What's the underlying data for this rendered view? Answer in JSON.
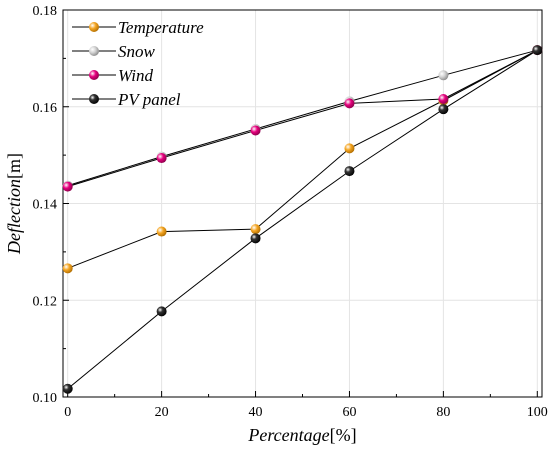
{
  "chart_data": {
    "type": "line",
    "xlabel_main": "Percentage",
    "xlabel_unit": "[%]",
    "ylabel_main": "Deflection",
    "ylabel_unit": "[m]",
    "xlim": [
      -1,
      101
    ],
    "ylim": [
      0.1,
      0.18
    ],
    "xticks": [
      0,
      20,
      40,
      60,
      80,
      100
    ],
    "yticks": [
      0.1,
      0.12,
      0.14,
      0.16,
      0.18
    ],
    "grid": true,
    "legend_position": "top-left",
    "x": [
      0,
      20,
      40,
      60,
      80,
      100
    ],
    "series": [
      {
        "name": "Temperature",
        "color": "#F5A623",
        "values": [
          0.1266,
          0.1342,
          0.1347,
          0.1514,
          0.1613,
          0.1717
        ]
      },
      {
        "name": "Snow",
        "color": "#C8C8C8",
        "values": [
          0.1437,
          0.1497,
          0.1554,
          0.1611,
          0.1665,
          0.1717
        ]
      },
      {
        "name": "Wind",
        "color": "#E6007E",
        "values": [
          0.1435,
          0.1494,
          0.1551,
          0.1607,
          0.1616,
          0.1717
        ]
      },
      {
        "name": "PV panel",
        "color": "#111111",
        "values": [
          0.1017,
          0.1177,
          0.1328,
          0.1467,
          0.1595,
          0.1717
        ]
      }
    ]
  }
}
